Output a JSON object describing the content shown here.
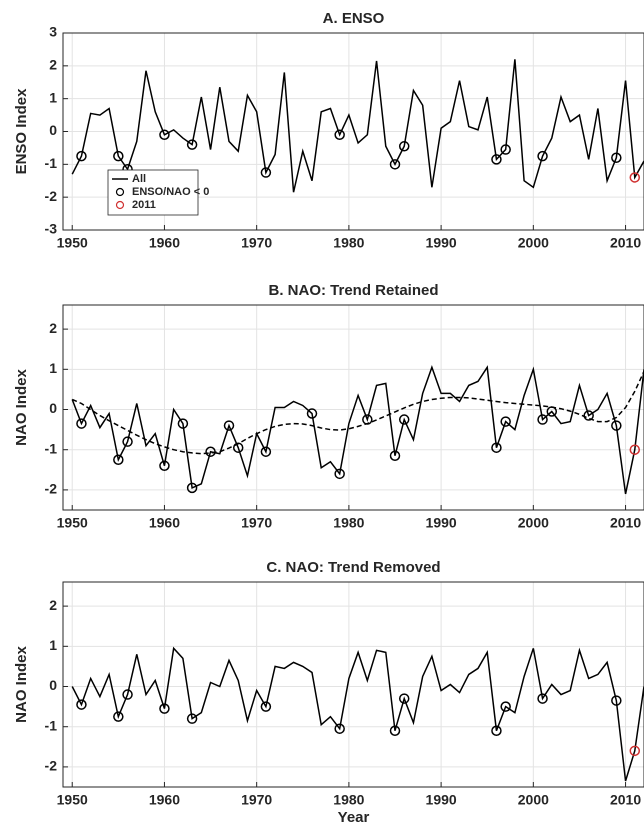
{
  "chart_data": [
    {
      "type": "line",
      "title": "A. ENSO",
      "ylabel": "ENSO Index",
      "x": [
        1950,
        1951,
        1952,
        1953,
        1954,
        1955,
        1956,
        1957,
        1958,
        1959,
        1960,
        1961,
        1962,
        1963,
        1964,
        1965,
        1966,
        1967,
        1968,
        1969,
        1970,
        1971,
        1972,
        1973,
        1974,
        1975,
        1976,
        1977,
        1978,
        1979,
        1980,
        1981,
        1982,
        1983,
        1984,
        1985,
        1986,
        1987,
        1988,
        1989,
        1990,
        1991,
        1992,
        1993,
        1994,
        1995,
        1996,
        1997,
        1998,
        1999,
        2000,
        2001,
        2002,
        2003,
        2004,
        2005,
        2006,
        2007,
        2008,
        2009,
        2010,
        2011,
        2012
      ],
      "series": [
        {
          "name": "All",
          "color": "#000000",
          "line_style": "solid",
          "marker": "none",
          "values": [
            -1.3,
            -0.75,
            0.55,
            0.5,
            0.7,
            -0.75,
            -1.15,
            -0.3,
            1.85,
            0.6,
            -0.1,
            0.05,
            -0.2,
            -0.4,
            1.05,
            -0.55,
            1.35,
            -0.3,
            -0.6,
            1.1,
            0.6,
            -1.25,
            -0.7,
            1.8,
            -1.85,
            -0.6,
            -1.5,
            0.6,
            0.7,
            -0.1,
            0.5,
            -0.35,
            -0.1,
            2.15,
            -0.45,
            -1.0,
            -0.45,
            1.25,
            0.8,
            -1.7,
            0.1,
            0.3,
            1.55,
            0.15,
            0.05,
            1.05,
            -0.85,
            -0.55,
            2.2,
            -1.5,
            -1.7,
            -0.75,
            -0.2,
            1.05,
            0.3,
            0.5,
            -0.85,
            0.7,
            -1.5,
            -0.8,
            1.55,
            -1.4,
            -0.9
          ]
        },
        {
          "name": "ENSO/NAO < 0",
          "color": "#000000",
          "line_style": "none",
          "marker": "circle",
          "x": [
            1951,
            1955,
            1956,
            1960,
            1963,
            1971,
            1979,
            1985,
            1986,
            1996,
            1997,
            2001,
            2009
          ],
          "values": [
            -0.75,
            -0.75,
            -1.15,
            -0.1,
            -0.4,
            -1.25,
            -0.1,
            -1.0,
            -0.45,
            -0.85,
            -0.55,
            -0.75,
            -0.8
          ]
        },
        {
          "name": "2011",
          "color": "#d03030",
          "line_style": "none",
          "marker": "circle",
          "x": [
            2011
          ],
          "values": [
            -1.4
          ]
        }
      ],
      "xlim": [
        1949,
        2012
      ],
      "xticks": [
        1950,
        1960,
        1970,
        1980,
        1990,
        2000,
        2010
      ],
      "ylim": [
        -3,
        3
      ],
      "yticks": [
        -3,
        -2,
        -1,
        0,
        1,
        2,
        3
      ],
      "grid": true,
      "legend": "lower left"
    },
    {
      "type": "line",
      "title": "B. NAO: Trend Retained",
      "ylabel": "NAO Index",
      "x": [
        1950,
        1951,
        1952,
        1953,
        1954,
        1955,
        1956,
        1957,
        1958,
        1959,
        1960,
        1961,
        1962,
        1963,
        1964,
        1965,
        1966,
        1967,
        1968,
        1969,
        1970,
        1971,
        1972,
        1973,
        1974,
        1975,
        1976,
        1977,
        1978,
        1979,
        1980,
        1981,
        1982,
        1983,
        1984,
        1985,
        1986,
        1987,
        1988,
        1989,
        1990,
        1991,
        1992,
        1993,
        1994,
        1995,
        1996,
        1997,
        1998,
        1999,
        2000,
        2001,
        2002,
        2003,
        2004,
        2005,
        2006,
        2007,
        2008,
        2009,
        2010,
        2011,
        2012
      ],
      "series": [
        {
          "color": "#000000",
          "line_style": "solid",
          "marker": "none",
          "values": [
            0.25,
            -0.35,
            0.1,
            -0.45,
            -0.1,
            -1.25,
            -0.8,
            0.15,
            -0.9,
            -0.6,
            -1.4,
            0.0,
            -0.35,
            -1.95,
            -1.85,
            -1.05,
            -1.1,
            -0.4,
            -0.95,
            -1.65,
            -0.6,
            -1.05,
            0.05,
            0.05,
            0.2,
            0.1,
            -0.1,
            -1.45,
            -1.3,
            -1.6,
            -0.35,
            0.35,
            -0.25,
            0.6,
            0.65,
            -1.15,
            -0.25,
            -0.75,
            0.4,
            1.05,
            0.4,
            0.4,
            0.2,
            0.6,
            0.7,
            1.05,
            -0.95,
            -0.3,
            -0.5,
            0.35,
            1.0,
            -0.25,
            -0.05,
            -0.35,
            -0.3,
            0.6,
            -0.15,
            0.0,
            0.4,
            -0.4,
            -2.1,
            -1.0,
            1.0
          ]
        },
        {
          "color": "#000000",
          "line_style": "dashed",
          "marker": "none",
          "values": [
            0.25,
            0.15,
            0.0,
            -0.15,
            -0.28,
            -0.4,
            -0.52,
            -0.64,
            -0.75,
            -0.85,
            -0.93,
            -1.0,
            -1.05,
            -1.08,
            -1.1,
            -1.08,
            -1.05,
            -0.96,
            -0.85,
            -0.72,
            -0.6,
            -0.5,
            -0.42,
            -0.37,
            -0.35,
            -0.36,
            -0.4,
            -0.46,
            -0.5,
            -0.51,
            -0.48,
            -0.42,
            -0.35,
            -0.26,
            -0.16,
            -0.06,
            0.04,
            0.13,
            0.2,
            0.25,
            0.28,
            0.3,
            0.3,
            0.29,
            0.26,
            0.23,
            0.2,
            0.17,
            0.15,
            0.13,
            0.11,
            0.09,
            0.06,
            0.02,
            -0.04,
            -0.12,
            -0.22,
            -0.3,
            -0.3,
            -0.2,
            0.05,
            0.45,
            0.95
          ]
        },
        {
          "color": "#000000",
          "line_style": "none",
          "marker": "circle",
          "x": [
            1951,
            1955,
            1956,
            1960,
            1962,
            1963,
            1965,
            1967,
            1968,
            1971,
            1976,
            1979,
            1982,
            1985,
            1986,
            1996,
            1997,
            2001,
            2002,
            2006,
            2009
          ],
          "values": [
            -0.35,
            -1.25,
            -0.8,
            -1.4,
            -0.35,
            -1.95,
            -1.05,
            -0.4,
            -0.95,
            -1.05,
            -0.1,
            -1.6,
            -0.25,
            -1.15,
            -0.25,
            -0.95,
            -0.3,
            -0.25,
            -0.05,
            -0.15,
            -0.4
          ]
        },
        {
          "color": "#d03030",
          "line_style": "none",
          "marker": "circle",
          "x": [
            2011
          ],
          "values": [
            -1.0
          ]
        }
      ],
      "xlim": [
        1949,
        2012
      ],
      "xticks": [
        1950,
        1960,
        1970,
        1980,
        1990,
        2000,
        2010
      ],
      "ylim": [
        -2.5,
        2.6
      ],
      "yticks": [
        -2,
        -1,
        0,
        1,
        2
      ],
      "grid": true
    },
    {
      "type": "line",
      "title": "C. NAO: Trend Removed",
      "ylabel": "NAO Index",
      "xlabel": "Year",
      "x": [
        1950,
        1951,
        1952,
        1953,
        1954,
        1955,
        1956,
        1957,
        1958,
        1959,
        1960,
        1961,
        1962,
        1963,
        1964,
        1965,
        1966,
        1967,
        1968,
        1969,
        1970,
        1971,
        1972,
        1973,
        1974,
        1975,
        1976,
        1977,
        1978,
        1979,
        1980,
        1981,
        1982,
        1983,
        1984,
        1985,
        1986,
        1987,
        1988,
        1989,
        1990,
        1991,
        1992,
        1993,
        1994,
        1995,
        1996,
        1997,
        1998,
        1999,
        2000,
        2001,
        2002,
        2003,
        2004,
        2005,
        2006,
        2007,
        2008,
        2009,
        2010,
        2011,
        2012
      ],
      "series": [
        {
          "color": "#000000",
          "line_style": "solid",
          "marker": "none",
          "values": [
            0.0,
            -0.45,
            0.2,
            -0.25,
            0.3,
            -0.75,
            -0.2,
            0.8,
            -0.2,
            0.15,
            -0.55,
            0.95,
            0.7,
            -0.8,
            -0.65,
            0.1,
            0.0,
            0.65,
            0.15,
            -0.85,
            -0.1,
            -0.5,
            0.5,
            0.45,
            0.6,
            0.5,
            0.35,
            -0.95,
            -0.75,
            -1.05,
            0.2,
            0.85,
            0.15,
            0.9,
            0.85,
            -1.1,
            -0.3,
            -0.9,
            0.25,
            0.75,
            -0.1,
            0.05,
            -0.15,
            0.3,
            0.45,
            0.85,
            -1.1,
            -0.5,
            -0.65,
            0.25,
            0.95,
            -0.3,
            0.05,
            -0.2,
            -0.1,
            0.9,
            0.2,
            0.3,
            0.6,
            -0.35,
            -2.35,
            -1.6,
            0.0
          ]
        },
        {
          "color": "#000000",
          "line_style": "none",
          "marker": "circle",
          "x": [
            1951,
            1955,
            1956,
            1960,
            1963,
            1971,
            1979,
            1985,
            1986,
            1996,
            1997,
            2001,
            2009
          ],
          "values": [
            -0.45,
            -0.75,
            -0.2,
            -0.55,
            -0.8,
            -0.5,
            -1.05,
            -1.1,
            -0.3,
            -1.1,
            -0.5,
            -0.3,
            -0.35
          ]
        },
        {
          "color": "#d03030",
          "line_style": "none",
          "marker": "circle",
          "x": [
            2011
          ],
          "values": [
            -1.6
          ]
        }
      ],
      "xlim": [
        1949,
        2012
      ],
      "xticks": [
        1950,
        1960,
        1970,
        1980,
        1990,
        2000,
        2010
      ],
      "ylim": [
        -2.5,
        2.6
      ],
      "yticks": [
        -2,
        -1,
        0,
        1,
        2
      ],
      "grid": true
    }
  ]
}
